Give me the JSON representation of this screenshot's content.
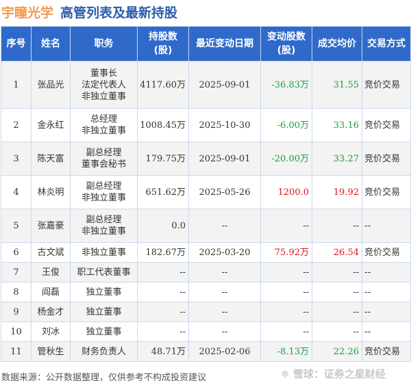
{
  "title": {
    "company": "宇瞳光学",
    "subtitle": "高管列表及最新持股"
  },
  "colors": {
    "header": "#2f6acb",
    "positive": "#e0101a",
    "negative": "#1a9e3a"
  },
  "columns": [
    "序号",
    "姓名",
    "职务",
    "持股数\n(股)",
    "最近变动日期",
    "变动股数\n(股)",
    "成交均价",
    "交易方式"
  ],
  "rows": [
    {
      "no": "1",
      "name": "张品光",
      "roles": [
        "董事长",
        "法定代表人",
        "非独立董事"
      ],
      "shares": "4117.60万",
      "date": "2025-09-01",
      "change": "-36.83万",
      "price": "31.55",
      "method": "竞价交易",
      "trend": "down"
    },
    {
      "no": "2",
      "name": "金永红",
      "roles": [
        "总经理",
        "非独立董事"
      ],
      "shares": "1008.45万",
      "date": "2025-10-30",
      "change": "-6.00万",
      "price": "33.16",
      "method": "竞价交易",
      "trend": "down"
    },
    {
      "no": "3",
      "name": "陈天富",
      "roles": [
        "副总经理",
        "董事会秘书"
      ],
      "shares": "179.75万",
      "date": "2025-09-01",
      "change": "-20.00万",
      "price": "33.27",
      "method": "竞价交易",
      "trend": "down"
    },
    {
      "no": "4",
      "name": "林炎明",
      "roles": [
        "副总经理",
        "非独立董事"
      ],
      "shares": "651.62万",
      "date": "2025-05-26",
      "change": "1200.0",
      "price": "19.92",
      "method": "竞价交易",
      "trend": "up"
    },
    {
      "no": "5",
      "name": "张嘉豪",
      "roles": [
        "副总经理",
        "非独立董事"
      ],
      "shares": "0.0",
      "date": "--",
      "change": "--",
      "price": "--",
      "method": "--",
      "trend": ""
    },
    {
      "no": "6",
      "name": "古文斌",
      "roles": [
        "非独立董事"
      ],
      "shares": "182.67万",
      "date": "2025-03-20",
      "change": "75.92万",
      "price": "26.54",
      "method": "竞价交易",
      "trend": "up"
    },
    {
      "no": "7",
      "name": "王俊",
      "roles": [
        "职工代表董事"
      ],
      "shares": "--",
      "date": "--",
      "change": "--",
      "price": "--",
      "method": "--",
      "trend": ""
    },
    {
      "no": "8",
      "name": "阎磊",
      "roles": [
        "独立董事"
      ],
      "shares": "--",
      "date": "--",
      "change": "--",
      "price": "--",
      "method": "--",
      "trend": ""
    },
    {
      "no": "9",
      "name": "杨金才",
      "roles": [
        "独立董事"
      ],
      "shares": "--",
      "date": "--",
      "change": "--",
      "price": "--",
      "method": "--",
      "trend": ""
    },
    {
      "no": "10",
      "name": "刘冰",
      "roles": [
        "独立董事"
      ],
      "shares": "--",
      "date": "--",
      "change": "--",
      "price": "--",
      "method": "--",
      "trend": ""
    },
    {
      "no": "11",
      "name": "管秋生",
      "roles": [
        "财务负责人"
      ],
      "shares": "48.71万",
      "date": "2025-02-06",
      "change": "-8.13万",
      "price": "22.26",
      "method": "竞价交易",
      "trend": "down"
    }
  ],
  "footer": "数据来源：公开数据整理，仅供参考不构成投资建议",
  "watermark": "雪球：证券之星财经"
}
